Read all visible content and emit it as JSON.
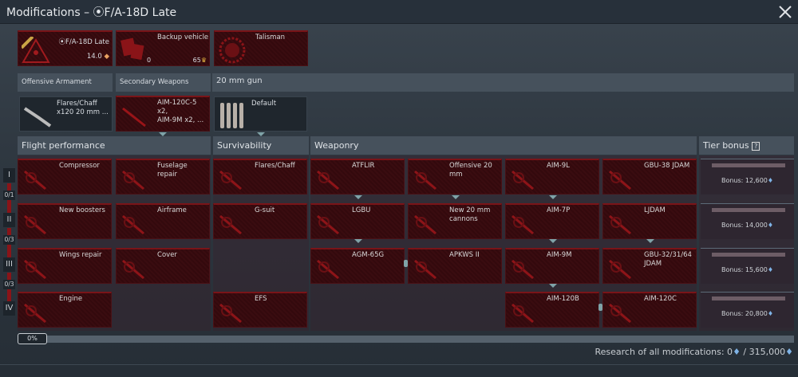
{
  "title": "Modifications – ⦿F/A-18D Late",
  "vehicle": {
    "name": "⦿F/A-18D Late",
    "br": "14.0"
  },
  "backup": {
    "label": "Backup vehicle",
    "count": "0",
    "price": "65"
  },
  "talisman": {
    "label": "Talisman"
  },
  "weapon_tabs": [
    "Offensive Armament",
    "Secondary Weapons",
    "20 mm gun"
  ],
  "weapon_presets": [
    "Flares/Chaff\nx120 20 mm ...",
    "AIM-120C-5 x2,\nAIM-9M x2,  ...",
    "Default"
  ],
  "sections": [
    "Flight performance",
    "Survivability",
    "Weaponry",
    "Tier bonus"
  ],
  "tier_help": "?",
  "tiers": [
    "I",
    "II",
    "III",
    "IV"
  ],
  "tier_counts": [
    "0/1",
    "0/3",
    "0/3"
  ],
  "flight": [
    [
      "Compressor",
      "Fuselage repair"
    ],
    [
      "New boosters",
      "Airframe"
    ],
    [
      "Wings repair",
      "Cover"
    ],
    [
      "Engine",
      null
    ]
  ],
  "survivability": [
    "Flares/Chaff",
    "G-suit",
    null,
    "EFS"
  ],
  "weaponry": [
    [
      "ATFLIR",
      "Offensive 20 mm",
      "AIM-9L",
      "GBU-38 JDAM"
    ],
    [
      "LGBU",
      "New 20 mm\ncannons",
      "AIM-7P",
      "LJDAM"
    ],
    [
      "AGM-65G",
      "APKWS II",
      "AIM-9M",
      "GBU-32/31/64\nJDAM"
    ],
    [
      null,
      null,
      "AIM-120B",
      "AIM-120C"
    ]
  ],
  "bonuses": [
    "Bonus: 12,600",
    "Bonus: 14,000",
    "Bonus: 15,600",
    "Bonus: 20,800"
  ],
  "progress": {
    "label": "0%",
    "value": 0
  },
  "footer": {
    "prefix": "Research of all modifications: 0",
    "total": " / 315,000"
  },
  "colors": {
    "accent_red": "#7a1418",
    "card_bg": "#3a0c10",
    "rp_icon": "#7fb3e6"
  }
}
